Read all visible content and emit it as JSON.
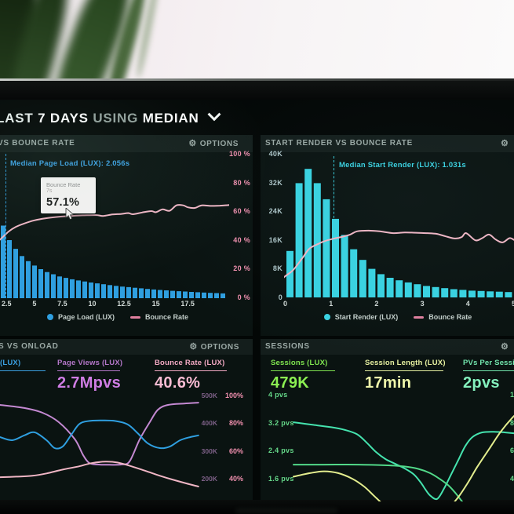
{
  "header": {
    "p1": "LAST",
    "p2": "7 DAYS",
    "p3": "USING",
    "p4": "MEDIAN"
  },
  "panels": {
    "pageload": {
      "title": "VS BOUNCE RATE",
      "options": "OPTIONS",
      "gear": "⚙",
      "annotation": "Median Page Load (LUX): 2.056s",
      "tooltip": {
        "metric": "Bounce Rate",
        "x": "7s",
        "value": "57.1%"
      },
      "y_right": [
        "100 %",
        "80 %",
        "60 %",
        "40 %",
        "20 %",
        "0 %"
      ],
      "x_ticks": [
        "2.5",
        "5",
        "7.5",
        "10",
        "12.5",
        "15",
        "17.5"
      ],
      "legend": [
        {
          "label": "Page Load (LUX)"
        },
        {
          "label": "Bounce Rate"
        }
      ]
    },
    "startrender": {
      "title": "START RENDER VS BOUNCE RATE",
      "gear": "⚙",
      "annotation": "Median Start Render (LUX): 1.031s",
      "y_left": [
        "40K",
        "32K",
        "24K",
        "16K",
        "8K",
        "0"
      ],
      "x_ticks": [
        "0",
        "1",
        "2",
        "3",
        "4",
        "5"
      ],
      "legend": [
        {
          "label": "Start Render (LUX)"
        },
        {
          "label": "Bounce Rate"
        }
      ]
    },
    "onload": {
      "title": "S VS ONLOAD",
      "options": "OPTIONS",
      "gear": "⚙",
      "stats": [
        {
          "label": "(LUX)",
          "value": ""
        },
        {
          "label": "Page Views (LUX)",
          "value": "2.7Mpvs"
        },
        {
          "label": "Bounce Rate (LUX)",
          "value": "40.6%"
        }
      ],
      "y_right_pairs": [
        {
          "k": "500K",
          "pct": "100%"
        },
        {
          "k": "400K",
          "pct": "80%"
        },
        {
          "k": "300K",
          "pct": "60%"
        },
        {
          "k": "200K",
          "pct": "40%"
        }
      ]
    },
    "sessions": {
      "title": "SESSIONS",
      "gear": "⚙",
      "stats": [
        {
          "label": "Sessions (LUX)",
          "value": "479K"
        },
        {
          "label": "Session Length (LUX)",
          "value": "17min"
        },
        {
          "label": "PVs Per Sessio",
          "value": "2pvs"
        }
      ],
      "y_left": [
        "4 pvs",
        "3.2 pvs",
        "2.4 pvs",
        "1.6 pvs"
      ],
      "y_right_cut": [
        "1",
        "8",
        "6",
        "4"
      ]
    }
  },
  "colors": {
    "blue": "#2f9fe0",
    "cyan": "#39d3e2",
    "pink_line": "#f0b6c5",
    "pink_label": "#ef8fae",
    "purple_line": "#c489d2",
    "teal_line": "#45e3ae",
    "green_line": "#52d989",
    "yellow_line": "#e3ed8e",
    "stat_purple": "#cf7de4",
    "stat_pink": "#f9bcd3",
    "stat_green": "#8cf052",
    "stat_yellow": "#f0f7ab",
    "stat_mint": "#84f0bd",
    "panel_bg": "#0a1311"
  },
  "chart_data": [
    {
      "type": "bar",
      "name": "page-load-vs-bounce-rate",
      "x_ticks": [
        2.5,
        5,
        7.5,
        10,
        12.5,
        15,
        17.5
      ],
      "x_unit": "seconds",
      "bars": {
        "name": "Page Load (LUX)",
        "color": "#2f9fe0",
        "units": "relative-count-pct",
        "values": [
          50,
          40,
          34,
          29,
          25.5,
          22.5,
          20,
          18,
          16.5,
          15,
          14,
          13,
          12.2,
          11.5,
          10.8,
          10.2,
          9.6,
          9,
          8.5,
          8,
          7.6,
          7.2,
          6.8,
          6.4,
          6,
          5.7,
          5.4,
          5.1,
          4.8,
          4.6,
          4.3,
          4.1,
          3.9,
          3.7,
          3.5,
          3.3
        ]
      },
      "line": {
        "name": "Bounce Rate",
        "color": "#f0b6c5",
        "axis": "percent",
        "points": [
          [
            0,
            41
          ],
          [
            0.02,
            44
          ],
          [
            0.04,
            47
          ],
          [
            0.07,
            50
          ],
          [
            0.1,
            52
          ],
          [
            0.15,
            54.5
          ],
          [
            0.2,
            56
          ],
          [
            0.26,
            57.1
          ],
          [
            0.31,
            57.6
          ],
          [
            0.36,
            58
          ],
          [
            0.42,
            58.2
          ],
          [
            0.45,
            57.6
          ],
          [
            0.49,
            58.6
          ],
          [
            0.53,
            59
          ],
          [
            0.56,
            59.6
          ],
          [
            0.58,
            58.8
          ],
          [
            0.62,
            60
          ],
          [
            0.66,
            61
          ],
          [
            0.68,
            60.2
          ],
          [
            0.71,
            62.2
          ],
          [
            0.74,
            61.2
          ],
          [
            0.77,
            65
          ],
          [
            0.8,
            65
          ],
          [
            0.82,
            63.6
          ],
          [
            0.85,
            63.2
          ],
          [
            0.88,
            65
          ],
          [
            0.92,
            64.6
          ],
          [
            0.96,
            64.8
          ],
          [
            1,
            65.2
          ]
        ]
      },
      "median": {
        "label": "Median Page Load (LUX): 2.056s",
        "value_s": 2.056
      },
      "y_axis_right_pct": [
        0,
        20,
        40,
        60,
        80,
        100
      ],
      "tooltip_point": {
        "x": "7s",
        "bounce_rate_pct": 57.1
      }
    },
    {
      "type": "bar",
      "name": "start-render-vs-bounce-rate",
      "x_ticks": [
        0,
        1,
        2,
        3,
        4,
        5
      ],
      "x_unit": "seconds",
      "y_axis_left": {
        "min": 0,
        "max": 40000,
        "tick_step": 8000
      },
      "bars": {
        "name": "Start Render (LUX)",
        "color": "#39d3e2",
        "units": "K",
        "values": [
          13,
          32,
          36,
          32,
          27.5,
          22,
          17.5,
          13.5,
          10.5,
          8,
          6.5,
          5.5,
          4.8,
          4.2,
          3.7,
          3.2,
          2.9,
          2.6,
          2.3,
          2.1,
          1.9,
          1.8,
          1.7,
          1.6,
          1.5,
          1.4,
          1.3,
          1.3,
          1.2
        ]
      },
      "line": {
        "name": "Bounce Rate",
        "color": "#f0b6c5",
        "units": "K-equivalent",
        "points": [
          [
            -0.09,
            7
          ],
          [
            -0.06,
            5.6
          ],
          [
            -0.03,
            4.9
          ],
          [
            0,
            6.2
          ],
          [
            0.03,
            7.7
          ],
          [
            0.07,
            11
          ],
          [
            0.1,
            13.6
          ],
          [
            0.14,
            15
          ],
          [
            0.17,
            15.8
          ],
          [
            0.21,
            16.5
          ],
          [
            0.24,
            16.9
          ],
          [
            0.28,
            17.6
          ],
          [
            0.31,
            18.5
          ],
          [
            0.36,
            18.7
          ],
          [
            0.41,
            18.5
          ],
          [
            0.47,
            18
          ],
          [
            0.52,
            18.2
          ],
          [
            0.57,
            18.1
          ],
          [
            0.62,
            18
          ],
          [
            0.66,
            17.8
          ],
          [
            0.7,
            17.1
          ],
          [
            0.74,
            16.5
          ],
          [
            0.77,
            16.9
          ],
          [
            0.79,
            18
          ],
          [
            0.83,
            16
          ],
          [
            0.86,
            16.6
          ],
          [
            0.89,
            17.6
          ],
          [
            0.92,
            16.2
          ],
          [
            0.95,
            15.4
          ],
          [
            0.98,
            16.6
          ],
          [
            1,
            16.1
          ]
        ]
      },
      "median": {
        "label": "Median Start Render (LUX): 1.031s",
        "value_s": 1.031
      }
    },
    {
      "type": "line",
      "name": "pageviews-vs-onload",
      "y_axis_right": {
        "k_ticks": [
          500000,
          400000,
          300000,
          200000
        ],
        "pct_ticks": [
          100,
          80,
          60,
          40
        ]
      },
      "series": [
        {
          "name": "Page Views (LUX)",
          "color": "#c489d2",
          "axis": "K",
          "points": [
            [
              0,
              464
            ],
            [
              0.12,
              453
            ],
            [
              0.21,
              436
            ],
            [
              0.29,
              403
            ],
            [
              0.37,
              342
            ],
            [
              0.41,
              287
            ],
            [
              0.44,
              259
            ],
            [
              0.48,
              253
            ],
            [
              0.54,
              252
            ],
            [
              0.6,
              253
            ],
            [
              0.64,
              264
            ],
            [
              0.69,
              342
            ],
            [
              0.74,
              403
            ],
            [
              0.78,
              447
            ],
            [
              0.83,
              464
            ],
            [
              0.91,
              469
            ],
            [
              0.98,
              472
            ]
          ]
        },
        {
          "name": "onLoad (LUX)",
          "color": "#2f9fe0",
          "axis": "K",
          "points": [
            [
              0,
              350
            ],
            [
              0.06,
              339
            ],
            [
              0.12,
              356
            ],
            [
              0.17,
              367
            ],
            [
              0.23,
              339
            ],
            [
              0.27,
              311
            ],
            [
              0.31,
              317
            ],
            [
              0.35,
              356
            ],
            [
              0.39,
              395
            ],
            [
              0.43,
              406
            ],
            [
              0.5,
              409
            ],
            [
              0.57,
              407
            ],
            [
              0.63,
              395
            ],
            [
              0.68,
              364
            ],
            [
              0.73,
              328
            ],
            [
              0.79,
              311
            ],
            [
              0.84,
              317
            ],
            [
              0.89,
              339
            ],
            [
              0.94,
              350
            ],
            [
              0.98,
              356
            ]
          ]
        },
        {
          "name": "Bounce Rate (LUX)",
          "color": "#f0b6c5",
          "axis": "pct",
          "points": [
            [
              0,
              41.6
            ],
            [
              0.08,
              42
            ],
            [
              0.16,
              42.6
            ],
            [
              0.23,
              44.3
            ],
            [
              0.31,
              47
            ],
            [
              0.39,
              49.3
            ],
            [
              0.45,
              51.5
            ],
            [
              0.52,
              52.6
            ],
            [
              0.58,
              52
            ],
            [
              0.65,
              49.3
            ],
            [
              0.72,
              46
            ],
            [
              0.79,
              42.6
            ],
            [
              0.85,
              40
            ],
            [
              0.92,
              37.2
            ],
            [
              0.98,
              35
            ]
          ]
        }
      ]
    },
    {
      "type": "line",
      "name": "sessions-panel-trends",
      "y_axis_left_pvs": [
        4,
        3.2,
        2.4,
        1.6
      ],
      "series": [
        {
          "name": "Sessions (LUX)",
          "color": "#45e3ae",
          "axis": "pvs",
          "points": [
            [
              0.02,
              3.22
            ],
            [
              0.1,
              3.15
            ],
            [
              0.18,
              3.08
            ],
            [
              0.24,
              3.0
            ],
            [
              0.29,
              2.88
            ],
            [
              0.33,
              2.65
            ],
            [
              0.37,
              2.38
            ],
            [
              0.41,
              2.18
            ],
            [
              0.45,
              2.05
            ],
            [
              0.49,
              1.92
            ],
            [
              0.53,
              1.75
            ],
            [
              0.56,
              1.52
            ],
            [
              0.58,
              1.32
            ],
            [
              0.6,
              1.15
            ],
            [
              0.63,
              1.05
            ],
            [
              0.66,
              1.35
            ],
            [
              0.69,
              1.75
            ],
            [
              0.72,
              2.15
            ],
            [
              0.75,
              2.55
            ],
            [
              0.78,
              2.8
            ],
            [
              0.82,
              2.93
            ],
            [
              0.87,
              2.95
            ],
            [
              0.92,
              2.93
            ],
            [
              1,
              2.88
            ]
          ]
        },
        {
          "name": "PVs Per Session",
          "color": "#52d989",
          "axis": "pvs",
          "points": [
            [
              0.02,
              2.02
            ],
            [
              0.15,
              2.02
            ],
            [
              0.3,
              2.02
            ],
            [
              0.42,
              2.0
            ],
            [
              0.49,
              1.97
            ],
            [
              0.55,
              1.9
            ],
            [
              0.6,
              1.78
            ],
            [
              0.64,
              1.62
            ],
            [
              0.68,
              1.42
            ],
            [
              0.71,
              1.2
            ],
            [
              0.74,
              0.95
            ],
            [
              0.78,
              0.7
            ]
          ]
        },
        {
          "name": "Session Length (LUX)",
          "color": "#e3ed8e",
          "axis": "pvs",
          "points": [
            [
              0.02,
              1.68
            ],
            [
              0.09,
              1.78
            ],
            [
              0.15,
              1.83
            ],
            [
              0.21,
              1.78
            ],
            [
              0.27,
              1.62
            ],
            [
              0.32,
              1.4
            ],
            [
              0.36,
              1.15
            ],
            [
              0.4,
              0.9
            ],
            [
              0.46,
              0.55
            ],
            [
              0.54,
              0.3
            ],
            [
              0.62,
              0.45
            ],
            [
              0.68,
              0.8
            ],
            [
              0.72,
              1.1
            ],
            [
              0.76,
              1.5
            ],
            [
              0.8,
              1.95
            ],
            [
              0.85,
              2.45
            ],
            [
              0.9,
              2.95
            ],
            [
              0.95,
              3.35
            ],
            [
              0.99,
              3.6
            ]
          ]
        }
      ]
    }
  ]
}
